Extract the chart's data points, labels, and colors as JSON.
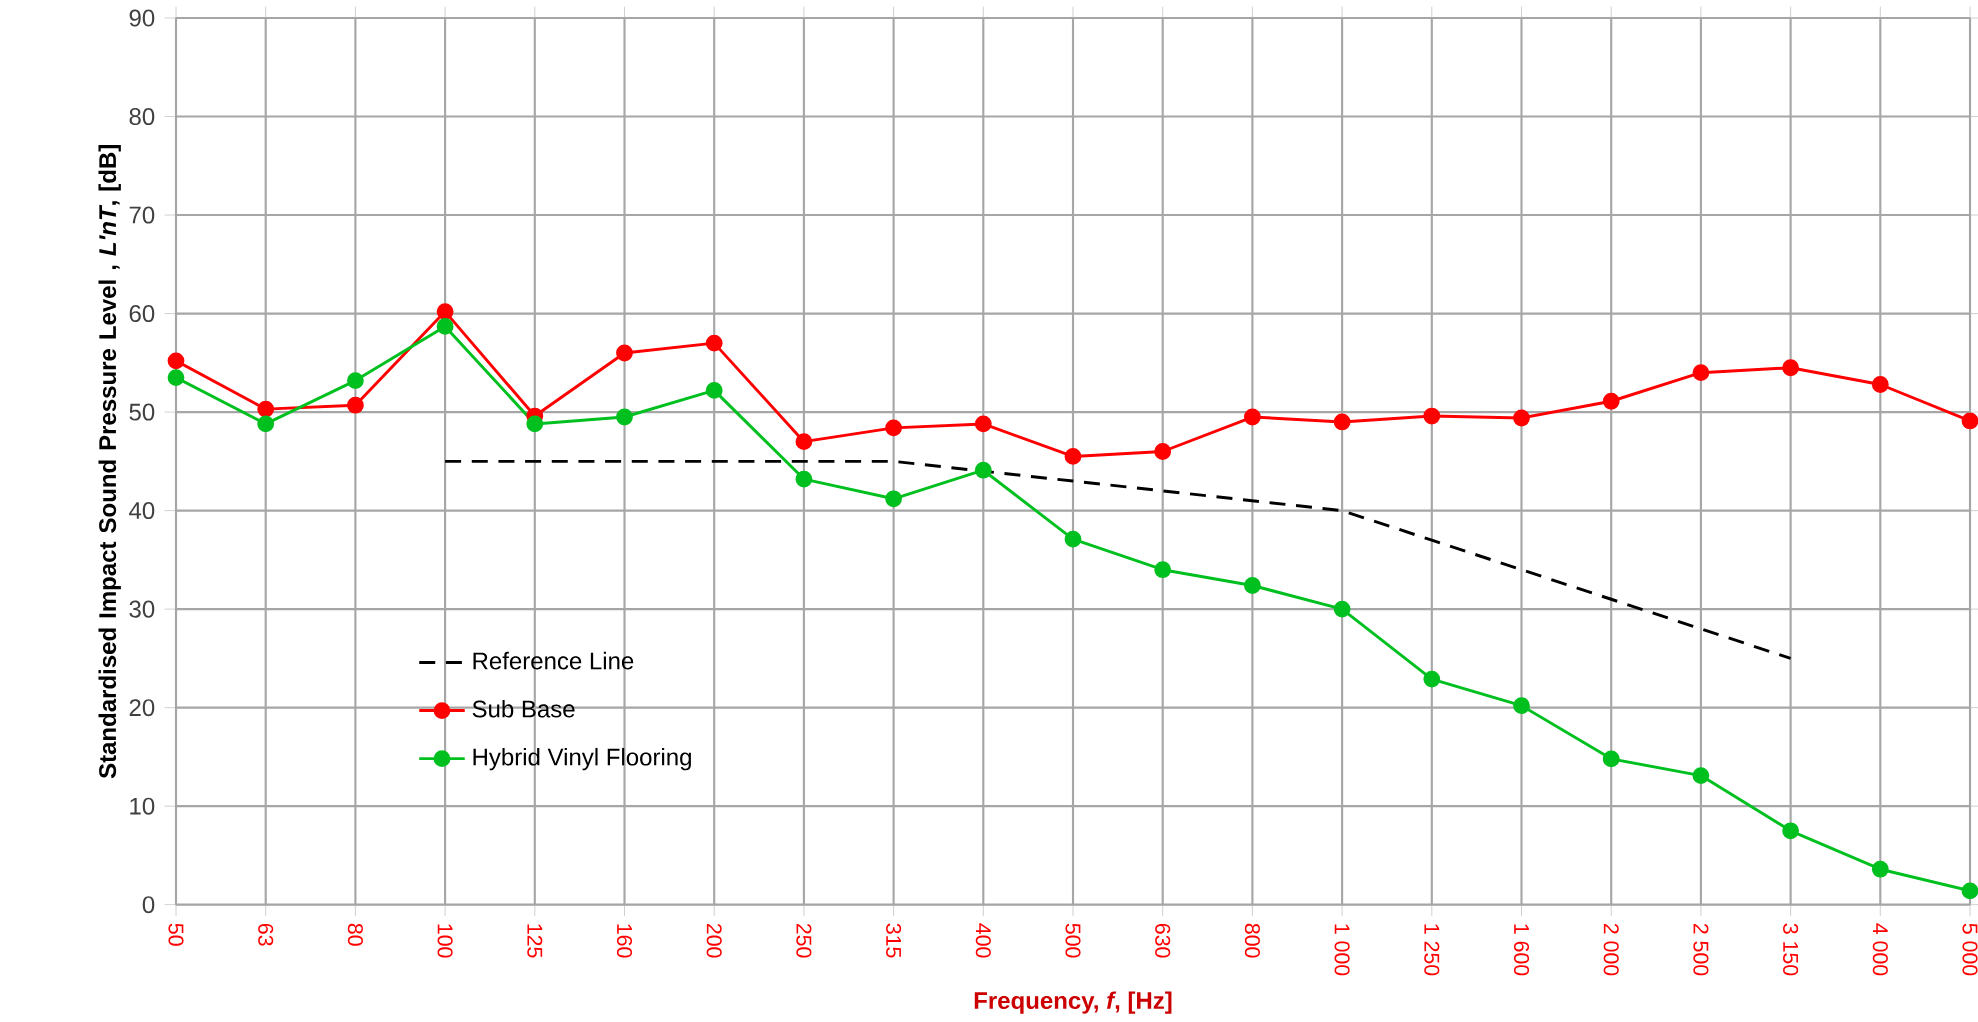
{
  "chart_data": {
    "type": "line",
    "xlabel": "Frequency, *f*, [Hz]",
    "ylabel": "Standardised Impact Sound Pressure Level , *L'nT*, [dB]",
    "categories": [
      "50",
      "63",
      "80",
      "100",
      "125",
      "160",
      "200",
      "250",
      "315",
      "400",
      "500",
      "630",
      "800",
      "1 000",
      "1 250",
      "1 600",
      "2 000",
      "2 500",
      "3 150",
      "4 000",
      "5 000"
    ],
    "ylim": [
      0,
      90
    ],
    "yticks": [
      0,
      10,
      20,
      30,
      40,
      50,
      60,
      70,
      80,
      90
    ],
    "grid": true,
    "legend": "bottom left",
    "marker": "circle",
    "line_style": "solid",
    "series": [
      {
        "name": "Reference Line",
        "color": "#000000",
        "marker": "none",
        "line_style": "dashed",
        "values": [
          null,
          null,
          null,
          45,
          45,
          45,
          45,
          45,
          45,
          44,
          43,
          42,
          41,
          40,
          37,
          34,
          31,
          28,
          25,
          null,
          null
        ]
      },
      {
        "name": "Sub Base",
        "color": "#ff0000",
        "values": [
          55.2,
          50.3,
          50.7,
          60.2,
          49.6,
          56,
          57,
          47,
          48.4,
          48.8,
          45.5,
          46,
          49.5,
          49,
          49.6,
          49.4,
          51.1,
          54,
          54.5,
          52.8,
          49.1
        ]
      },
      {
        "name": "Hybrid Vinyl Flooring",
        "color": "#00c020",
        "values": [
          53.5,
          48.8,
          53.2,
          58.7,
          48.8,
          49.5,
          52.2,
          43.2,
          41.2,
          44.1,
          37.1,
          34,
          32.4,
          30,
          22.9,
          20.2,
          14.8,
          13.1,
          7.5,
          3.6,
          1.4
        ]
      }
    ]
  }
}
